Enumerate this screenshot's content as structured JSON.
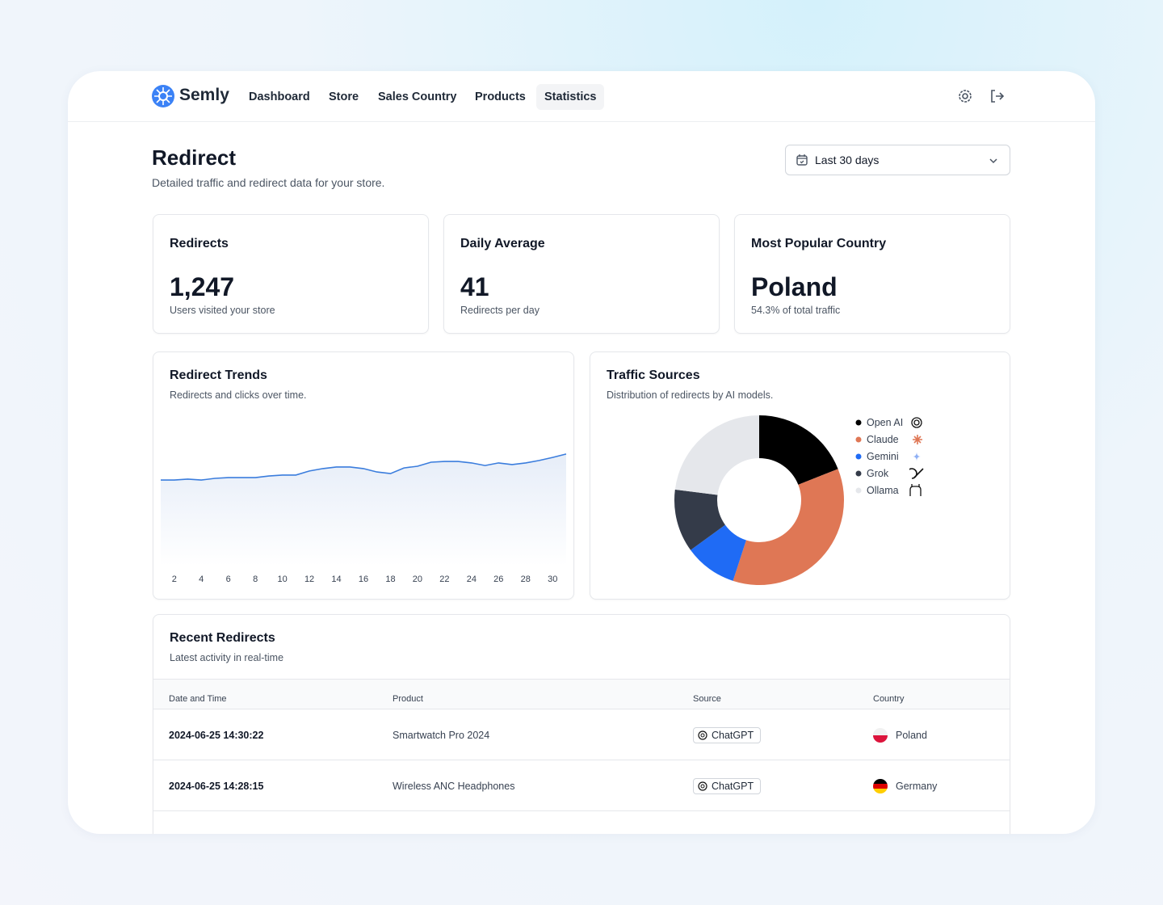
{
  "nav": {
    "brand": "Semly",
    "links": [
      "Dashboard",
      "Store",
      "Sales Country",
      "Products",
      "Statistics"
    ],
    "active_index": 4
  },
  "header": {
    "title": "Redirect",
    "subtitle": "Detailed traffic and redirect data for your store.",
    "range": "Last 30 days"
  },
  "stats": [
    {
      "label": "Redirects",
      "value": "1,247",
      "note": "Users visited your store"
    },
    {
      "label": "Daily Average",
      "value": 41,
      "note": "Redirects per day"
    },
    {
      "label": "Most Popular Country",
      "value": "Poland",
      "note": "54.3% of total traffic"
    }
  ],
  "chart_data": [
    {
      "type": "line",
      "title": "Redirect Trends",
      "subtitle": "Redirects and clicks over time.",
      "x": [
        1,
        2,
        3,
        4,
        5,
        6,
        7,
        8,
        9,
        10,
        11,
        12,
        13,
        14,
        15,
        16,
        17,
        18,
        19,
        20,
        21,
        22,
        23,
        24,
        25,
        26,
        27,
        28,
        29,
        30,
        31
      ],
      "values": [
        35.9,
        35.9,
        36.3,
        35.9,
        36.6,
        36.9,
        36.9,
        36.9,
        37.6,
        38.0,
        38.0,
        39.7,
        40.7,
        41.4,
        41.4,
        40.7,
        39.3,
        38.6,
        41.0,
        41.7,
        43.4,
        43.7,
        43.7,
        43.1,
        42.0,
        43.1,
        42.4,
        43.1,
        44.1,
        45.4,
        46.8
      ],
      "color": "#3b7ddd",
      "xlim": [
        0.4,
        31.6
      ],
      "ylim": [
        0,
        60
      ],
      "xticks": [
        2,
        4,
        6,
        8,
        10,
        12,
        14,
        16,
        18,
        20,
        22,
        24,
        26,
        28,
        30
      ]
    },
    {
      "type": "pie",
      "title": "Traffic Sources",
      "subtitle": "Distribution of redirects by AI models.",
      "categories": [
        "Open AI",
        "Claude",
        "Gemini",
        "Grok",
        "Ollama"
      ],
      "values": [
        19,
        36,
        10,
        12,
        23
      ],
      "colors": [
        "#000000",
        "#df7755",
        "#1f6bf5",
        "#343b49",
        "#e5e7eb"
      ]
    }
  ],
  "table": {
    "title": "Recent Redirects",
    "subtitle": "Latest activity in real-time",
    "columns": [
      "Date and Time",
      "Product",
      "Source",
      "Country"
    ],
    "rows": [
      [
        "2024-06-25 14:30:22",
        "Smartwatch Pro 2024",
        "ChatGPT",
        "Poland"
      ],
      [
        "2024-06-25 14:28:15",
        "Wireless ANC Headphones",
        "ChatGPT",
        "Germany"
      ]
    ]
  }
}
